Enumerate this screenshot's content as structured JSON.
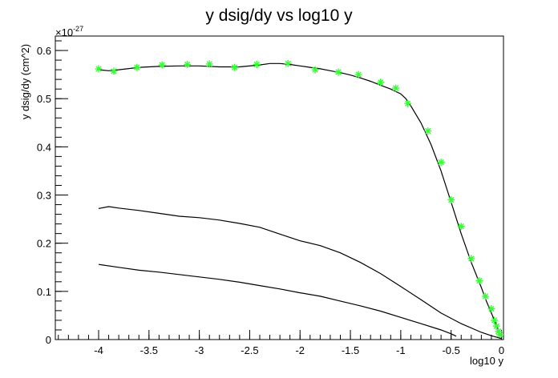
{
  "chart_data": {
    "type": "line",
    "title": "y dsig/dy vs log10 y",
    "xlabel": "log10 y",
    "ylabel": "y dsig/dy (cm^2)",
    "y_multiplier_label": "×10",
    "y_multiplier_exponent": "-27",
    "xlim": [
      -4.43,
      0.02
    ],
    "ylim": [
      0,
      0.63
    ],
    "x_ticks": [
      -4,
      -3.5,
      -3,
      -2.5,
      -2,
      -1.5,
      -1,
      -0.5,
      0
    ],
    "x_tick_labels": [
      "-4",
      "-3.5",
      "-3",
      "-2.5",
      "-2",
      "-1.5",
      "-1",
      "-0.5",
      "0"
    ],
    "y_ticks": [
      0,
      0.1,
      0.2,
      0.3,
      0.4,
      0.5,
      0.6
    ],
    "y_tick_labels": [
      "0",
      "0.1",
      "0.2",
      "0.3",
      "0.4",
      "0.5",
      "0.6"
    ],
    "grid": false,
    "colors": {
      "curve": "#000000",
      "marker": "#33ff33"
    },
    "series": [
      {
        "style": "line",
        "x": [
          -4.0,
          -3.9,
          -3.8,
          -3.6,
          -3.4,
          -3.2,
          -3.0,
          -2.8,
          -2.6,
          -2.4,
          -2.3,
          -2.2,
          -2.1,
          -2.0,
          -1.9,
          -1.8,
          -1.7,
          -1.6,
          -1.5,
          -1.4,
          -1.3,
          -1.2,
          -1.1,
          -1.0,
          -0.95,
          -0.9,
          -0.8,
          -0.7,
          -0.6,
          -0.5,
          -0.4,
          -0.3,
          -0.2,
          -0.15,
          -0.1,
          -0.06,
          -0.03,
          0.0
        ],
        "y": [
          0.56,
          0.558,
          0.56,
          0.565,
          0.567,
          0.568,
          0.568,
          0.566,
          0.566,
          0.57,
          0.573,
          0.573,
          0.571,
          0.568,
          0.565,
          0.562,
          0.558,
          0.554,
          0.549,
          0.543,
          0.536,
          0.528,
          0.52,
          0.51,
          0.5,
          0.485,
          0.45,
          0.405,
          0.35,
          0.285,
          0.22,
          0.16,
          0.108,
          0.08,
          0.055,
          0.035,
          0.02,
          0.008
        ]
      },
      {
        "style": "markers",
        "marker": "star",
        "x": [
          -4.0,
          -3.85,
          -3.62,
          -3.37,
          -3.12,
          -2.9,
          -2.65,
          -2.43,
          -2.12,
          -1.85,
          -1.62,
          -1.42,
          -1.2,
          -1.05,
          -0.93,
          -0.73,
          -0.6,
          -0.5,
          -0.4,
          -0.3,
          -0.22,
          -0.16,
          -0.1,
          -0.07,
          -0.05,
          -0.03,
          -0.015
        ],
        "y": [
          0.562,
          0.557,
          0.565,
          0.57,
          0.571,
          0.572,
          0.565,
          0.571,
          0.573,
          0.56,
          0.555,
          0.55,
          0.534,
          0.522,
          0.49,
          0.433,
          0.368,
          0.29,
          0.235,
          0.168,
          0.122,
          0.09,
          0.064,
          0.04,
          0.028,
          0.017,
          0.01
        ]
      },
      {
        "style": "line",
        "x": [
          -4.0,
          -3.9,
          -3.8,
          -3.6,
          -3.4,
          -3.2,
          -3.0,
          -2.8,
          -2.6,
          -2.4,
          -2.2,
          -2.0,
          -1.8,
          -1.6,
          -1.4,
          -1.2,
          -1.0,
          -0.8,
          -0.6,
          -0.4,
          -0.2,
          -0.1,
          0.0
        ],
        "y": [
          0.272,
          0.276,
          0.273,
          0.268,
          0.262,
          0.256,
          0.253,
          0.248,
          0.241,
          0.233,
          0.219,
          0.205,
          0.195,
          0.18,
          0.16,
          0.137,
          0.11,
          0.083,
          0.055,
          0.033,
          0.015,
          0.008,
          0.002
        ]
      },
      {
        "style": "line",
        "x": [
          -4.0,
          -3.8,
          -3.6,
          -3.4,
          -3.2,
          -3.0,
          -2.8,
          -2.6,
          -2.4,
          -2.2,
          -2.0,
          -1.8,
          -1.6,
          -1.4,
          -1.2,
          -1.0,
          -0.8,
          -0.6,
          -0.5,
          -0.45
        ],
        "y": [
          0.156,
          0.15,
          0.144,
          0.14,
          0.135,
          0.13,
          0.125,
          0.119,
          0.112,
          0.105,
          0.097,
          0.09,
          0.08,
          0.07,
          0.059,
          0.046,
          0.033,
          0.02,
          0.012,
          0.007
        ]
      }
    ]
  }
}
